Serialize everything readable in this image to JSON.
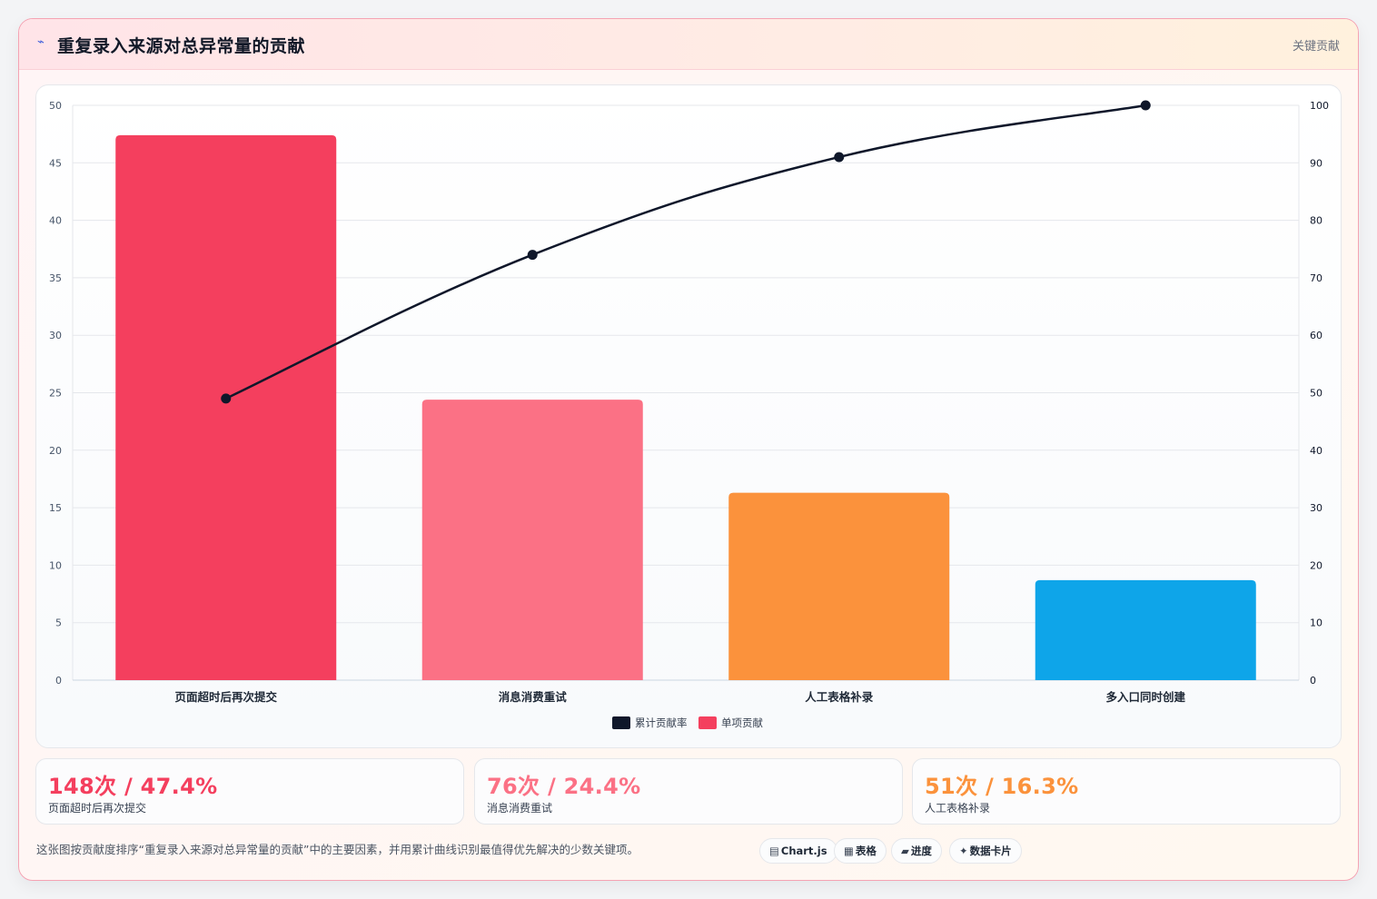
{
  "header": {
    "icon": "⌁",
    "title": "重复录入来源对总异常量的贡献",
    "badge": "关键贡献"
  },
  "chart_data": {
    "type": "bar",
    "categories": [
      "页面超时后再次提交",
      "消息消费重试",
      "人工表格补录",
      "多入口同时创建"
    ],
    "series": [
      {
        "name": "单项贡献",
        "type": "bar",
        "axis": "left",
        "values": [
          47.4,
          24.4,
          16.3,
          8.7
        ],
        "colors": [
          "#f43f5e",
          "#fb7185",
          "#fb923c",
          "#0ea5e9"
        ]
      },
      {
        "name": "累计贡献率",
        "type": "line",
        "axis": "right",
        "values": [
          49,
          74,
          91,
          100
        ],
        "color": "#0f172a"
      }
    ],
    "ylim_left": [
      0,
      50
    ],
    "ylim_right": [
      0,
      100
    ],
    "yticks_left": [
      "0",
      "5",
      "10",
      "15",
      "20",
      "25",
      "30",
      "35",
      "40",
      "45",
      "50"
    ],
    "yticks_right": [
      "0",
      "10",
      "20",
      "30",
      "40",
      "50",
      "60",
      "70",
      "80",
      "90",
      "100"
    ],
    "grid": true,
    "legend": [
      {
        "label": "累计贡献率",
        "color": "#0f172a"
      },
      {
        "label": "单项贡献",
        "color": "#f43f5e"
      }
    ],
    "legend_position": "bottom"
  },
  "kpis": [
    {
      "value": "148次 / 47.4%",
      "label": "页面超时后再次提交",
      "color": "#f43f5e"
    },
    {
      "value": "76次 / 24.4%",
      "label": "消息消费重试",
      "color": "#fb7185"
    },
    {
      "value": "51次 / 16.3%",
      "label": "人工表格补录",
      "color": "#fb923c"
    }
  ],
  "footnote": "这张图按贡献度排序“重复录入来源对总异常量的贡献”中的主要因素，并用累计曲线识别最值得优先解决的少数关键项。",
  "tags": [
    {
      "icon": "▤",
      "label": "Chart.js"
    },
    {
      "icon": "▦",
      "label": "表格"
    },
    {
      "icon": "▰",
      "label": "进度"
    },
    {
      "icon": "✦",
      "label": "数据卡片"
    }
  ]
}
